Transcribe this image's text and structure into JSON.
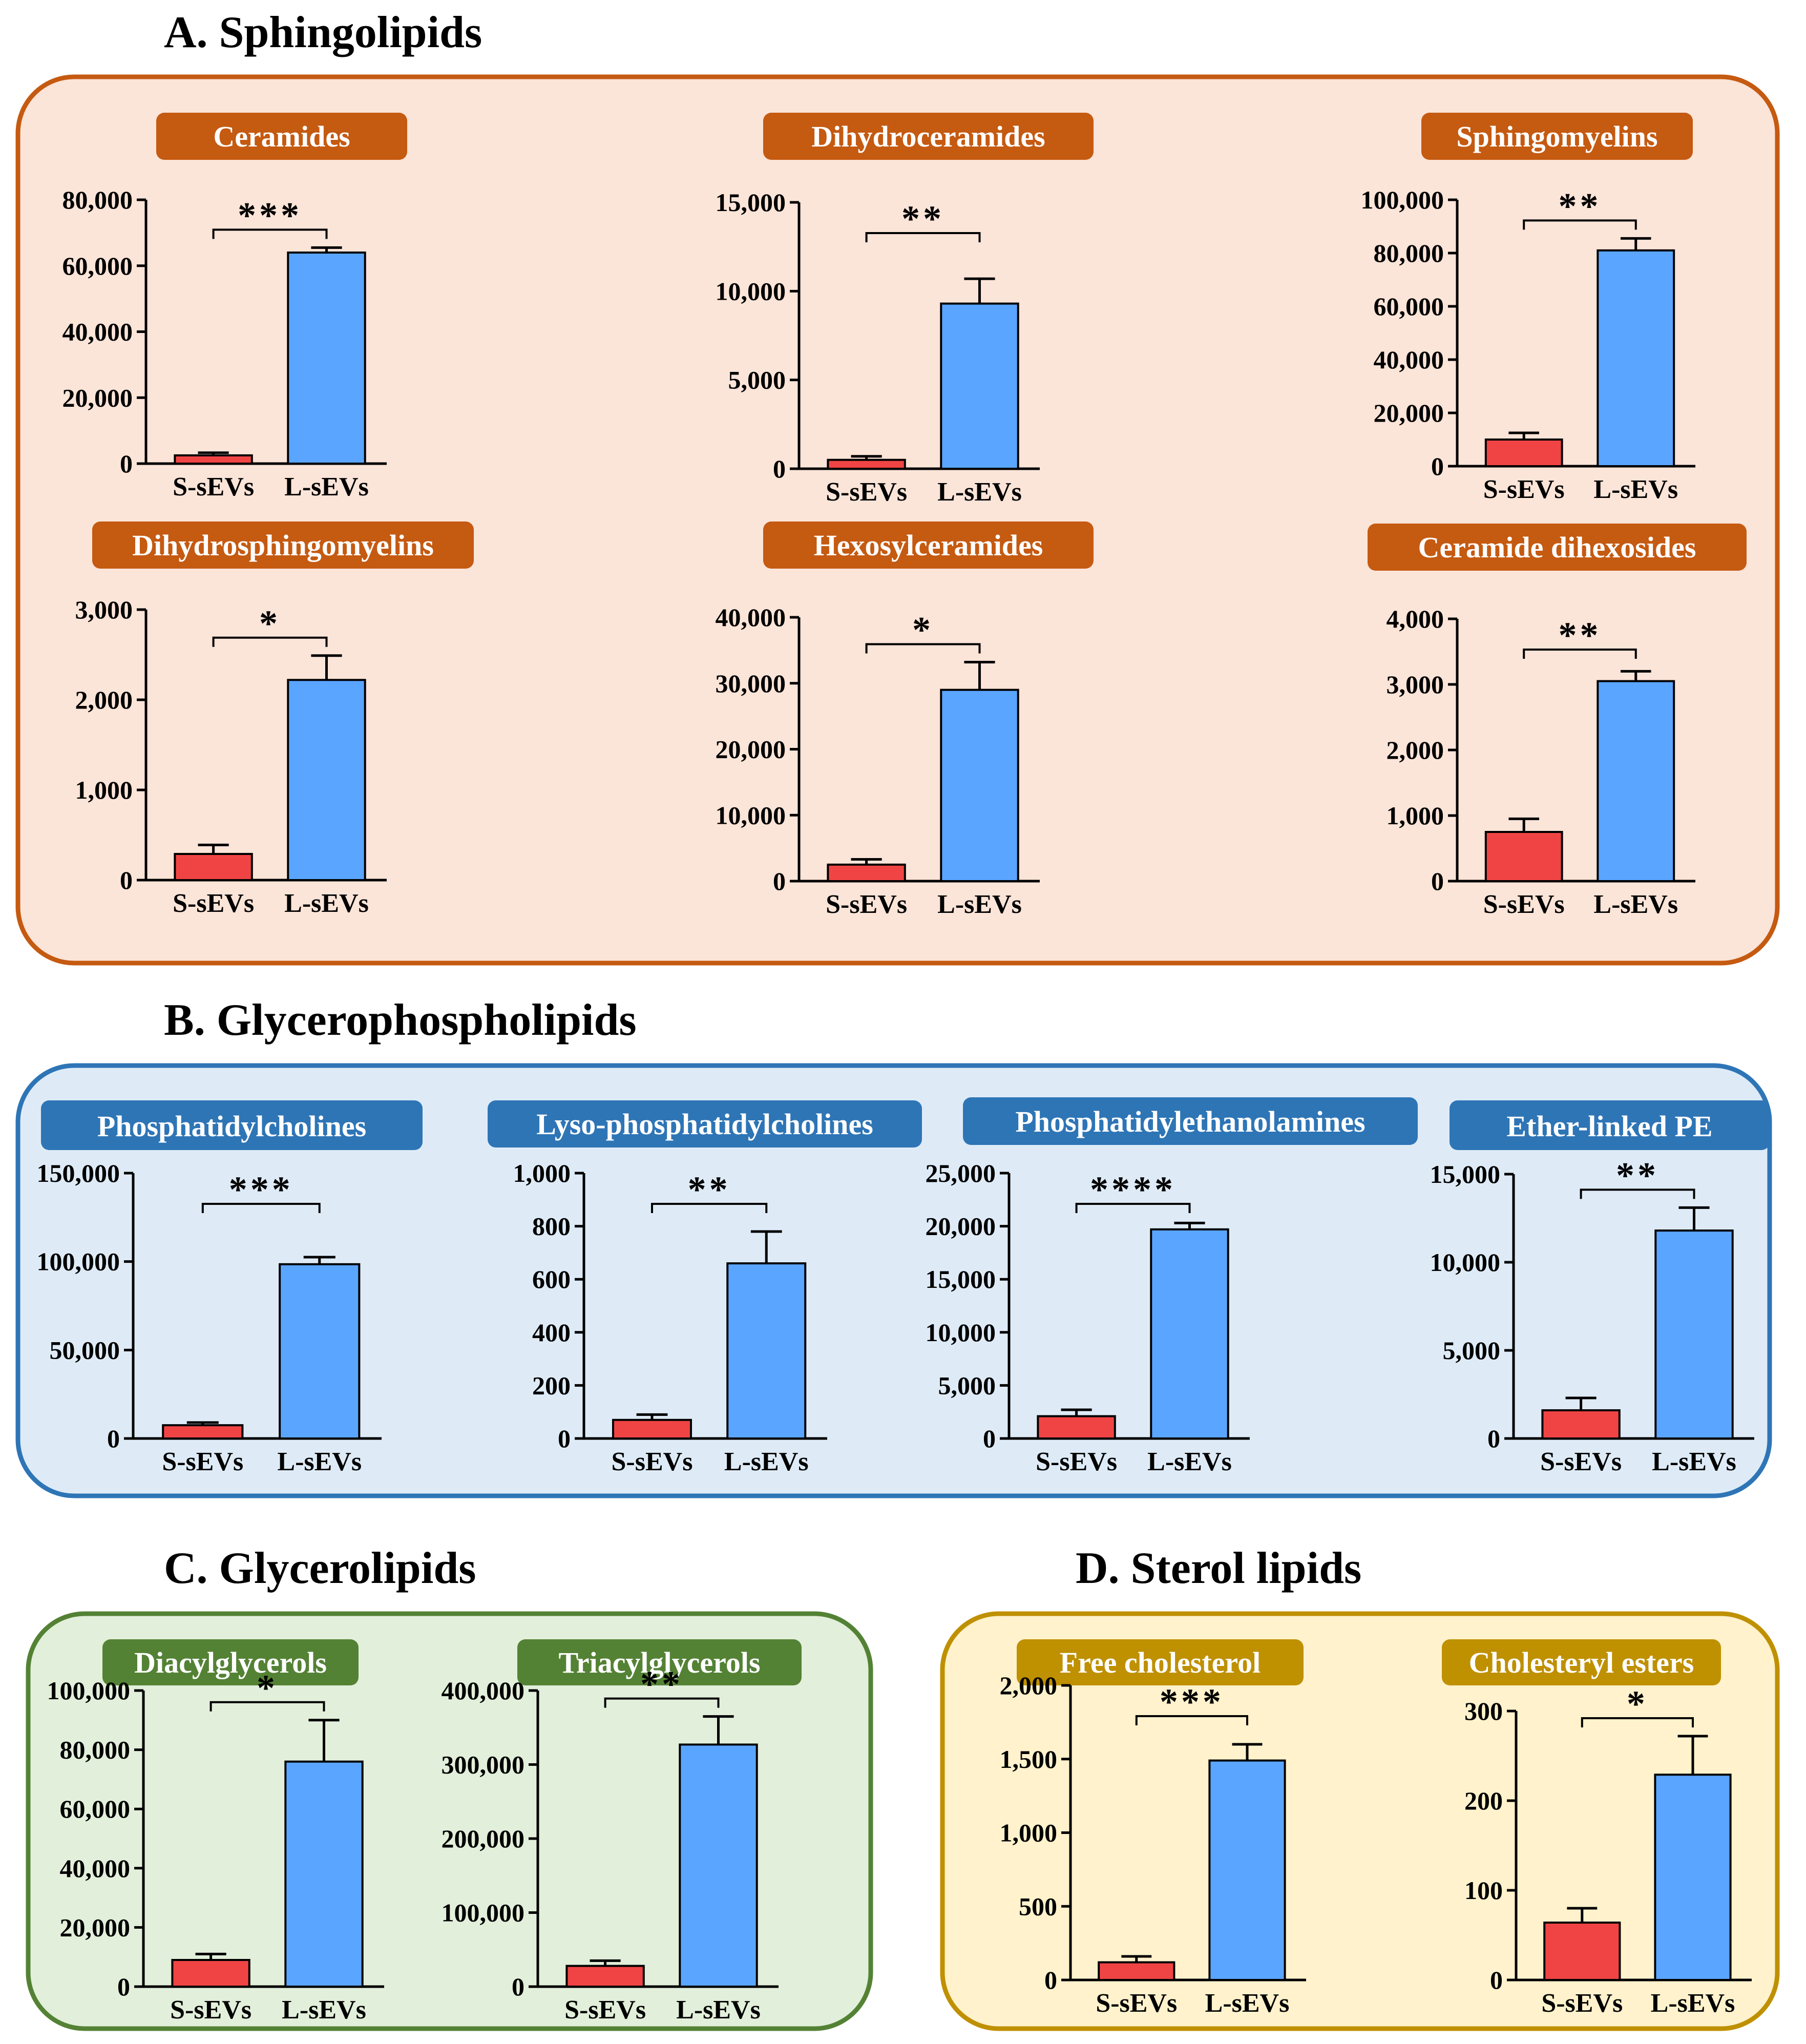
{
  "colors": {
    "s_bar": "#f04444",
    "l_bar": "#5aa5ff",
    "sphingo": {
      "fill": "#fbe4d8",
      "stroke": "#c55a11",
      "label": "#c55a11"
    },
    "glycerophospho": {
      "fill": "#deebf7",
      "stroke": "#2e75b6",
      "label": "#2e75b6"
    },
    "glycero": {
      "fill": "#e2efda",
      "stroke": "#548235",
      "label": "#548235"
    },
    "sterol": {
      "fill": "#fff2cc",
      "stroke": "#bf9000",
      "label": "#bf9000"
    }
  },
  "sections": [
    {
      "id": "sphingo",
      "title": "A. Sphingolipids"
    },
    {
      "id": "glycerophospho",
      "title": "B. Glycerophospholipids"
    },
    {
      "id": "glycero",
      "title": "C. Glycerolipids"
    },
    {
      "id": "sterol",
      "title": "D. Sterol lipids"
    }
  ],
  "chart_data": [
    {
      "type": "bar",
      "section": "sphingo",
      "title": "Ceramides",
      "categories": [
        "S-sEVs",
        "L-sEVs"
      ],
      "values": [
        2500,
        64000
      ],
      "errors": [
        800,
        1500
      ],
      "ylim": [
        0,
        80000
      ],
      "yticks": [
        "0",
        "20,000",
        "40,000",
        "60,000",
        "80,000"
      ],
      "yticks_values": [
        0,
        20000,
        40000,
        60000,
        80000
      ],
      "significance": "***"
    },
    {
      "type": "bar",
      "section": "sphingo",
      "title": "Dihydroceramides",
      "categories": [
        "S-sEVs",
        "L-sEVs"
      ],
      "values": [
        500,
        9300
      ],
      "errors": [
        200,
        1400
      ],
      "ylim": [
        0,
        15000
      ],
      "yticks": [
        "0",
        "5,000",
        "10,000",
        "15,000"
      ],
      "yticks_values": [
        0,
        5000,
        10000,
        15000
      ],
      "significance": "**"
    },
    {
      "type": "bar",
      "section": "sphingo",
      "title": "Sphingomyelins",
      "categories": [
        "S-sEVs",
        "L-sEVs"
      ],
      "values": [
        10000,
        81000
      ],
      "errors": [
        2500,
        4500
      ],
      "ylim": [
        0,
        100000
      ],
      "yticks": [
        "0",
        "20,000",
        "40,000",
        "60,000",
        "80,000",
        "100,000"
      ],
      "yticks_values": [
        0,
        20000,
        40000,
        60000,
        80000,
        100000
      ],
      "significance": "**"
    },
    {
      "type": "bar",
      "section": "sphingo",
      "title": "Dihydrosphingomyelins",
      "categories": [
        "S-sEVs",
        "L-sEVs"
      ],
      "values": [
        290,
        2220
      ],
      "errors": [
        100,
        270
      ],
      "ylim": [
        0,
        3000
      ],
      "yticks": [
        "0",
        "1,000",
        "2,000",
        "3,000"
      ],
      "yticks_values": [
        0,
        1000,
        2000,
        3000
      ],
      "significance": "*"
    },
    {
      "type": "bar",
      "section": "sphingo",
      "title": "Hexosylceramides",
      "categories": [
        "S-sEVs",
        "L-sEVs"
      ],
      "values": [
        2500,
        29000
      ],
      "errors": [
        800,
        4200
      ],
      "ylim": [
        0,
        40000
      ],
      "yticks": [
        "0",
        "10,000",
        "20,000",
        "30,000",
        "40,000"
      ],
      "yticks_values": [
        0,
        10000,
        20000,
        30000,
        40000
      ],
      "significance": "*"
    },
    {
      "type": "bar",
      "section": "sphingo",
      "title": "Ceramide dihexosides",
      "categories": [
        "S-sEVs",
        "L-sEVs"
      ],
      "values": [
        750,
        3050
      ],
      "errors": [
        200,
        150
      ],
      "ylim": [
        0,
        4000
      ],
      "yticks": [
        "0",
        "1,000",
        "2,000",
        "3,000",
        "4,000"
      ],
      "yticks_values": [
        0,
        1000,
        2000,
        3000,
        4000
      ],
      "significance": "**"
    },
    {
      "type": "bar",
      "section": "glycerophospho",
      "title": "Phosphatidylcholines",
      "categories": [
        "S-sEVs",
        "L-sEVs"
      ],
      "values": [
        7500,
        98500
      ],
      "errors": [
        1500,
        4000
      ],
      "ylim": [
        0,
        150000
      ],
      "yticks": [
        "0",
        "50,000",
        "100,000",
        "150,000"
      ],
      "yticks_values": [
        0,
        50000,
        100000,
        150000
      ],
      "significance": "***"
    },
    {
      "type": "bar",
      "section": "glycerophospho",
      "title": "Lyso-phosphatidylcholines",
      "categories": [
        "S-sEVs",
        "L-sEVs"
      ],
      "values": [
        70,
        660
      ],
      "errors": [
        20,
        120
      ],
      "ylim": [
        0,
        1000
      ],
      "yticks": [
        "0",
        "200",
        "400",
        "600",
        "800",
        "1,000"
      ],
      "yticks_values": [
        0,
        200,
        400,
        600,
        800,
        1000
      ],
      "significance": "**"
    },
    {
      "type": "bar",
      "section": "glycerophospho",
      "title": "Phosphatidylethanolamines",
      "categories": [
        "S-sEVs",
        "L-sEVs"
      ],
      "values": [
        2100,
        19700
      ],
      "errors": [
        600,
        600
      ],
      "ylim": [
        0,
        25000
      ],
      "yticks": [
        "0",
        "5,000",
        "10,000",
        "15,000",
        "20,000",
        "25,000"
      ],
      "yticks_values": [
        0,
        5000,
        10000,
        15000,
        20000,
        25000
      ],
      "significance": "****"
    },
    {
      "type": "bar",
      "section": "glycerophospho",
      "title": "Ether-linked PE",
      "categories": [
        "S-sEVs",
        "L-sEVs"
      ],
      "values": [
        1600,
        11800
      ],
      "errors": [
        700,
        1300
      ],
      "ylim": [
        0,
        15000
      ],
      "yticks": [
        "0",
        "5,000",
        "10,000",
        "15,000"
      ],
      "yticks_values": [
        0,
        5000,
        10000,
        15000
      ],
      "significance": "**"
    },
    {
      "type": "bar",
      "section": "glycero",
      "title": "Diacylglycerols",
      "categories": [
        "S-sEVs",
        "L-sEVs"
      ],
      "values": [
        9000,
        76000
      ],
      "errors": [
        2000,
        14000
      ],
      "ylim": [
        0,
        100000
      ],
      "yticks": [
        "0",
        "20,000",
        "40,000",
        "60,000",
        "80,000",
        "100,000"
      ],
      "yticks_values": [
        0,
        20000,
        40000,
        60000,
        80000,
        100000
      ],
      "significance": "*"
    },
    {
      "type": "bar",
      "section": "glycero",
      "title": "Triacylglycerols",
      "categories": [
        "S-sEVs",
        "L-sEVs"
      ],
      "values": [
        28000,
        327000
      ],
      "errors": [
        7000,
        38000
      ],
      "ylim": [
        0,
        400000
      ],
      "yticks": [
        "0",
        "100,000",
        "200,000",
        "300,000",
        "400,000"
      ],
      "yticks_values": [
        0,
        100000,
        200000,
        300000,
        400000
      ],
      "significance": "**"
    },
    {
      "type": "bar",
      "section": "sterol",
      "title": "Free cholesterol",
      "categories": [
        "S-sEVs",
        "L-sEVs"
      ],
      "values": [
        120,
        1490
      ],
      "errors": [
        40,
        110
      ],
      "ylim": [
        0,
        2000
      ],
      "yticks": [
        "0",
        "500",
        "1,000",
        "1,500",
        "2,000"
      ],
      "yticks_values": [
        0,
        500,
        1000,
        1500,
        2000
      ],
      "significance": "***"
    },
    {
      "type": "bar",
      "section": "sterol",
      "title": "Cholesteryl esters",
      "categories": [
        "S-sEVs",
        "L-sEVs"
      ],
      "values": [
        64,
        229
      ],
      "errors": [
        16,
        43
      ],
      "ylim": [
        0,
        300
      ],
      "yticks": [
        "0",
        "100",
        "200",
        "300"
      ],
      "yticks_values": [
        0,
        100,
        200,
        300
      ],
      "significance": "*"
    }
  ]
}
